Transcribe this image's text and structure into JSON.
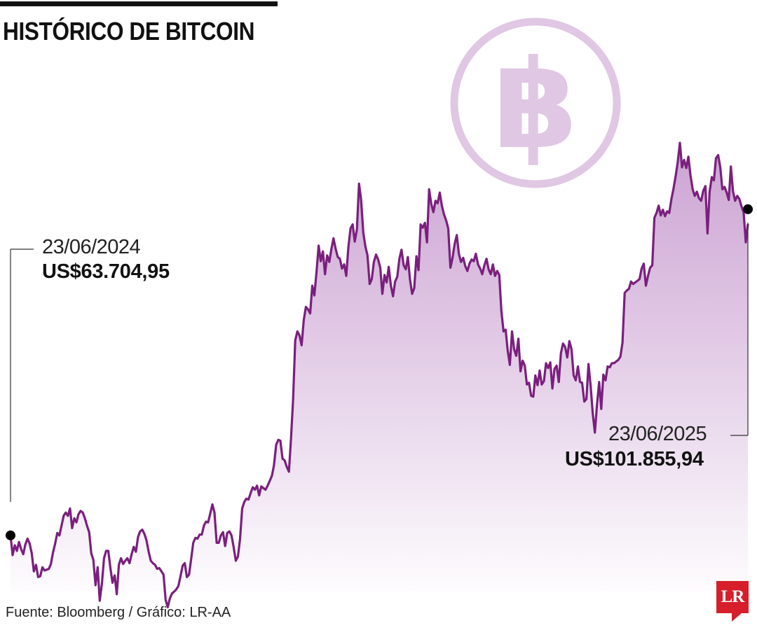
{
  "title": "HISTÓRICO DE BITCOIN",
  "source": "Fuente: Bloomberg / Gráfico: LR-AA",
  "logo_text": "LR",
  "icon": "bitcoin-logo-icon",
  "colors": {
    "line": "#7a1f7d",
    "area_top": "#c99ed0",
    "icon": "#e0c7e3",
    "text": "#111111",
    "logo": "#d61f2b"
  },
  "chart_data": {
    "type": "area",
    "x_start": "23/06/2024",
    "x_end": "23/06/2025",
    "grid": false,
    "annotations": [
      {
        "date": "23/06/2024",
        "value_text": "US$63.704,95",
        "value": 63704.95
      },
      {
        "date": "23/06/2025",
        "value_text": "US$101.855,94",
        "value": 101855.94
      }
    ],
    "values": [
      63705,
      61300,
      62500,
      61800,
      62900,
      62000,
      61400,
      62600,
      63300,
      62700,
      61500,
      59300,
      60100,
      58600,
      58700,
      59800,
      59400,
      59500,
      59600,
      60200,
      61600,
      62700,
      64000,
      63700,
      64900,
      66100,
      66500,
      66100,
      67000,
      64600,
      65800,
      65300,
      66300,
      66700,
      66500,
      65800,
      64900,
      64100,
      61500,
      60700,
      57600,
      59800,
      55700,
      57800,
      60900,
      61800,
      61800,
      59700,
      57900,
      58800,
      56500,
      60100,
      60900,
      60200,
      60600,
      60900,
      60300,
      61400,
      62300,
      61700,
      63500,
      64200,
      64400,
      63900,
      63100,
      61700,
      60600,
      60300,
      60100,
      59600,
      59700,
      59300,
      58900,
      55800,
      54900,
      56000,
      56600,
      56800,
      57100,
      57500,
      58700,
      60000,
      60300,
      58600,
      58900,
      60800,
      62800,
      63400,
      63300,
      63800,
      63800,
      64900,
      65400,
      65300,
      66400,
      67500,
      66500,
      62800,
      62800,
      63700,
      64100,
      62400,
      64000,
      64200,
      63700,
      62300,
      60600,
      61100,
      63200,
      67000,
      67800,
      68200,
      68100,
      68900,
      69600,
      69300,
      69800,
      68600,
      69700,
      69500,
      69300,
      69800,
      70400,
      71000,
      72300,
      74800,
      75400,
      75300,
      73100,
      72900,
      72100,
      71500,
      75600,
      80400,
      87600,
      88700,
      88200,
      87000,
      90100,
      91700,
      91400,
      90900,
      94300,
      93100,
      96000,
      99200,
      97300,
      98500,
      95700,
      98000,
      97200,
      98800,
      100100,
      98800,
      97800,
      97600,
      96400,
      96900,
      95500,
      99000,
      101300,
      101800,
      99700,
      101200,
      106800,
      104800,
      100800,
      99100,
      98000,
      94500,
      95100,
      97200,
      98100,
      97500,
      96500,
      93300,
      95600,
      94700,
      96600,
      94300,
      93000,
      94800,
      95400,
      97600,
      98700,
      96800,
      96300,
      97800,
      95000,
      93300,
      94000,
      97900,
      96200,
      101800,
      101400,
      102000,
      99600,
      106100,
      104300,
      103300,
      104700,
      104400,
      105700,
      104100,
      103000,
      102300,
      101300,
      96500,
      97700,
      99400,
      100500,
      98200,
      97200,
      97700,
      96700,
      96100,
      97000,
      97500,
      97300,
      98200,
      96900,
      96400,
      95700,
      96800,
      97600,
      96300,
      95700,
      96900,
      95500,
      96100,
      95600,
      91200,
      88700,
      88900,
      86300,
      84600,
      88700,
      86500,
      85700,
      87800,
      83800,
      85100,
      84500,
      82200,
      82400,
      80800,
      80700,
      83300,
      82100,
      83900,
      82200,
      82600,
      84800,
      84200,
      84900,
      81700,
      84100,
      84500,
      82500,
      86000,
      87200,
      86800,
      85500,
      87500,
      86500,
      83300,
      82700,
      84400,
      82500,
      82400,
      80100,
      80400,
      84700,
      82000,
      78600,
      76300,
      79700,
      82500,
      79200,
      83400,
      82700,
      84400,
      84300,
      84800,
      84800,
      85000,
      85200,
      85600,
      87300,
      93400,
      93700,
      93900,
      94800,
      94500,
      94700,
      94900,
      95100,
      96400,
      97000,
      94300,
      95500,
      96500,
      96800,
      102600,
      103200,
      104100,
      102900,
      103600,
      102800,
      103400,
      103200,
      104900,
      106200,
      107700,
      109500,
      111800,
      108800,
      109700,
      108700,
      110100,
      107800,
      106100,
      105300,
      105800,
      105000,
      104700,
      105900,
      106500,
      100700,
      105800,
      107600,
      107200,
      109900,
      110300,
      108800,
      106100,
      106400,
      105700,
      104800,
      108900,
      105800,
      104700,
      105300,
      104900,
      104000,
      103300,
      99600,
      101856
    ]
  }
}
